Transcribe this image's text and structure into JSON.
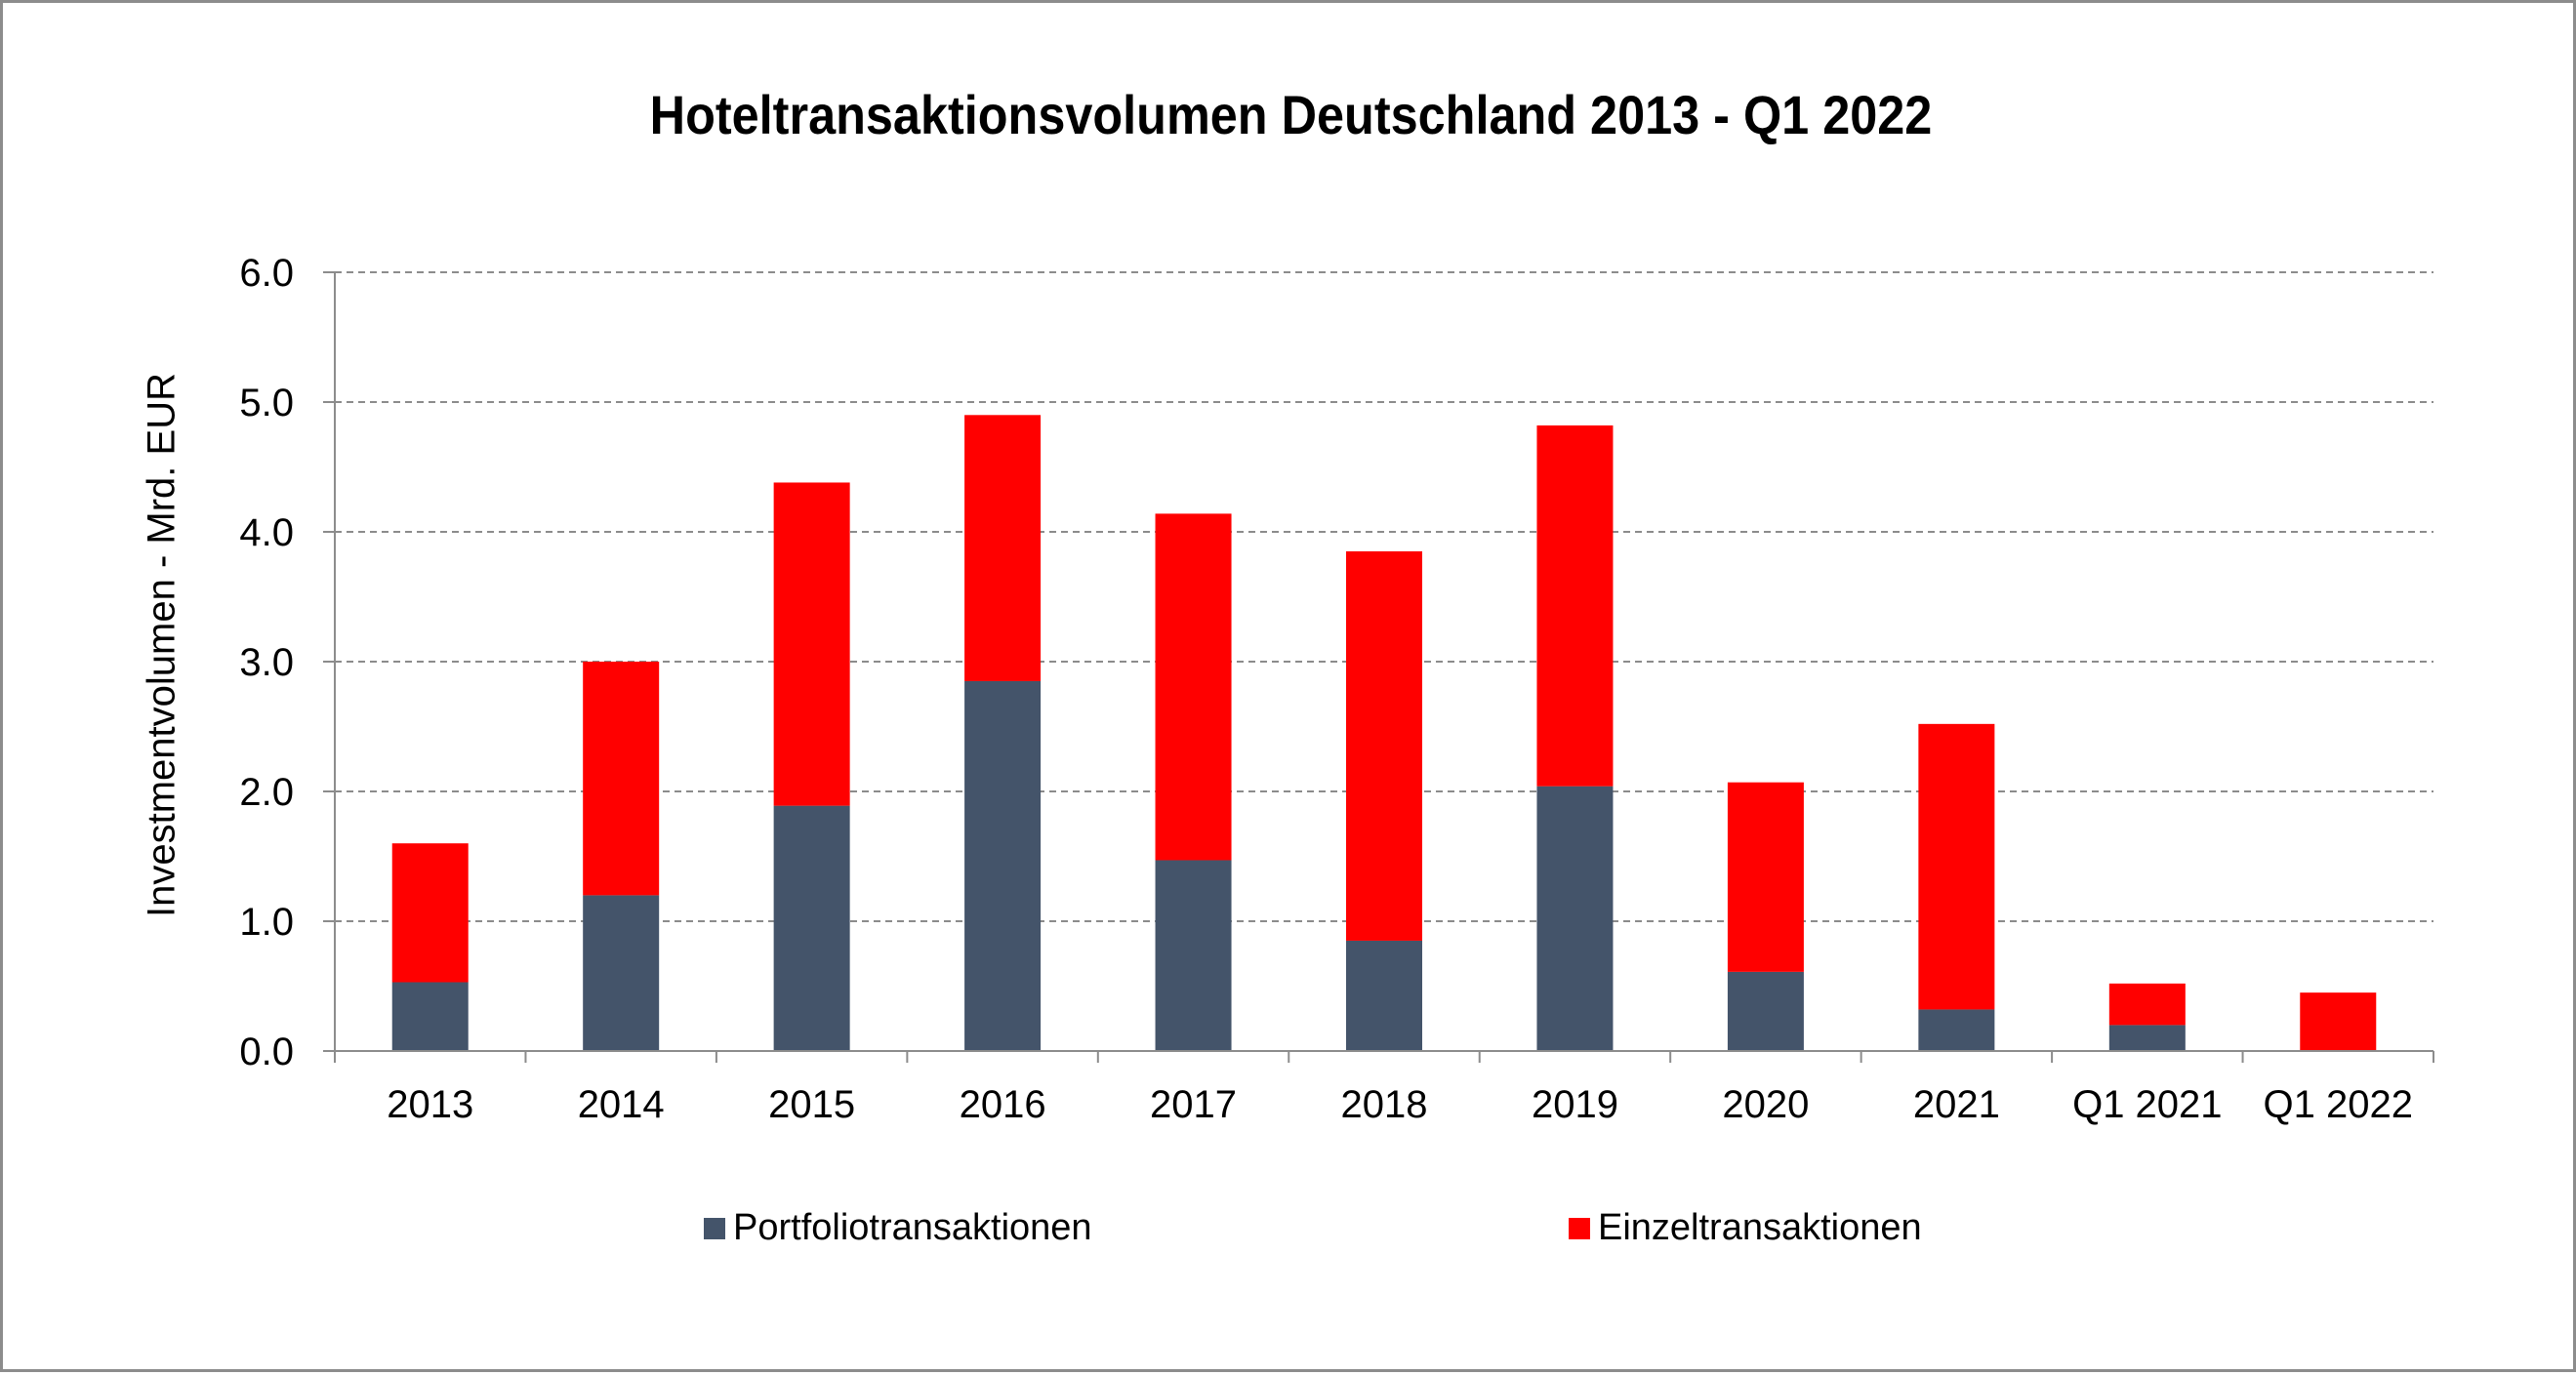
{
  "chart_data": {
    "type": "bar",
    "stacked": true,
    "title": "Hoteltransaktionsvolumen Deutschland 2013 - Q1 2022",
    "xlabel": "",
    "ylabel": "Investmentvolumen - Mrd. EUR",
    "ylim": [
      0,
      6
    ],
    "yticks": [
      "0.0",
      "1.0",
      "2.0",
      "3.0",
      "4.0",
      "5.0",
      "6.0"
    ],
    "grid": true,
    "legend_position": "bottom",
    "categories": [
      "2013",
      "2014",
      "2015",
      "2016",
      "2017",
      "2018",
      "2019",
      "2020",
      "2021",
      "Q1 2021",
      "Q1 2022"
    ],
    "series": [
      {
        "name": "Portfoliotransaktionen",
        "color": "#44546a",
        "values": [
          0.53,
          1.2,
          1.89,
          2.85,
          1.47,
          0.85,
          2.04,
          0.61,
          0.32,
          0.2,
          0.0
        ]
      },
      {
        "name": "Einzeltransaktionen",
        "color": "#ff0000",
        "values": [
          1.07,
          1.8,
          2.49,
          2.05,
          2.67,
          3.0,
          2.78,
          1.46,
          2.2,
          0.32,
          0.45
        ]
      }
    ]
  }
}
